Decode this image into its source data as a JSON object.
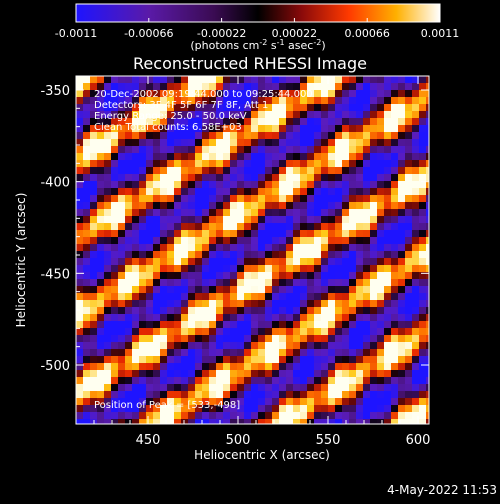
{
  "colorbar": {
    "ticks": [
      "-0.0011",
      "-0.00066",
      "-0.00022",
      "0.00022",
      "0.00066",
      "0.0011"
    ],
    "units_line": "(photons cm",
    "units_sup1": "-2",
    "units_mid": " s",
    "units_sup2": "-1",
    "units_end": " asec",
    "units_sup3": "-2",
    "units_close": ")"
  },
  "title": "Reconstructed RHESSI Image",
  "annotations": {
    "line1": "20-Dec-2002 09:19:44.000 to 09:25:44.000",
    "line2": "Detectors: 3F 4F 5F 6F 7F 8F, Att 1",
    "line3": "Energy Range: 25.0 - 50.0 keV",
    "line4": "Clean     Total counts: 6.58E+03",
    "peak": "Position of Peak = [533,-498]"
  },
  "axes": {
    "x_label": "Heliocentric X (arcsec)",
    "y_label": "Heliocentric Y (arcsec)",
    "x_ticks": [
      "450",
      "500",
      "550",
      "600"
    ],
    "y_ticks": [
      "-350",
      "-400",
      "-450",
      "-500"
    ]
  },
  "timestamp": "4-May-2022 11:53",
  "colors": {
    "background": "#000000",
    "low": "#1010ff",
    "mid": "#000000",
    "high": "#ffffff",
    "hot": "#ff6a00"
  }
}
